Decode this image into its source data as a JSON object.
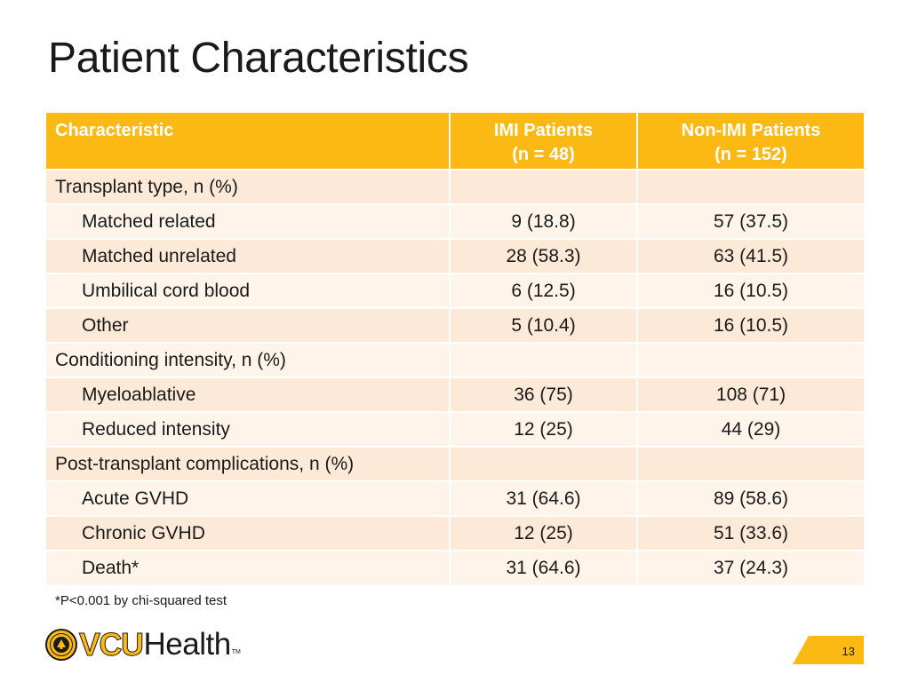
{
  "slide": {
    "title": "Patient Characteristics",
    "footnote": "*P<0.001 by chi-squared test",
    "page_number": "13"
  },
  "table": {
    "headers": {
      "characteristic": "Characteristic",
      "imi_title": "IMI Patients",
      "imi_n": "(n = 48)",
      "non_imi_title": "Non-IMI Patients",
      "non_imi_n": "(n = 152)"
    },
    "rows": [
      {
        "label": "Transplant type, n (%)",
        "imi": "",
        "non_imi": ""
      },
      {
        "label": "Matched related",
        "imi": "9 (18.8)",
        "non_imi": "57 (37.5)"
      },
      {
        "label": "Matched unrelated",
        "imi": "28 (58.3)",
        "non_imi": "63 (41.5)"
      },
      {
        "label": "Umbilical cord blood",
        "imi": "6 (12.5)",
        "non_imi": "16 (10.5)"
      },
      {
        "label": "Other",
        "imi": "5 (10.4)",
        "non_imi": "16 (10.5)"
      },
      {
        "label": "Conditioning intensity, n (%)",
        "imi": "",
        "non_imi": ""
      },
      {
        "label": "Myeloablative",
        "imi": "36 (75)",
        "non_imi": "108 (71)"
      },
      {
        "label": "Reduced intensity",
        "imi": "12 (25)",
        "non_imi": "44 (29)"
      },
      {
        "label": "Post-transplant complications, n (%)",
        "imi": "",
        "non_imi": ""
      },
      {
        "label": "Acute GVHD",
        "imi": "31 (64.6)",
        "non_imi": "89 (58.6)"
      },
      {
        "label": "Chronic GVHD",
        "imi": "12 (25)",
        "non_imi": "51 (33.6)"
      },
      {
        "label": "Death*",
        "imi": "31 (64.6)",
        "non_imi": "37 (24.3)"
      }
    ]
  },
  "logo": {
    "part1": "VCU",
    "part2": "Health",
    "tm": "TM"
  },
  "colors": {
    "accent": "#fdb913",
    "row_odd": "#fde9d7",
    "row_even": "#fef4ea"
  }
}
